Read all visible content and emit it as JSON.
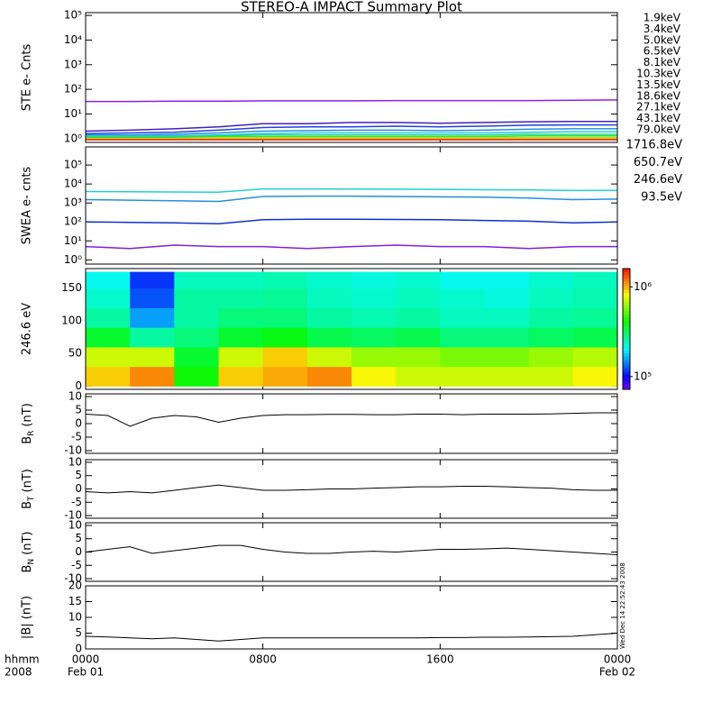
{
  "chart_data": [
    {
      "type": "line",
      "title": "STEREO-A IMPACT Summary Plot",
      "ylabel": "STE e- Cnts",
      "yscale": "log",
      "xlim": [
        0,
        24
      ],
      "xticks": [
        0,
        8,
        16,
        24
      ],
      "ylim": [
        0.7,
        130000
      ],
      "yticks": [
        {
          "value": 1,
          "label": "10⁰"
        },
        {
          "value": 10,
          "label": "10¹"
        },
        {
          "value": 100,
          "label": "10²"
        },
        {
          "value": 1000,
          "label": "10³"
        },
        {
          "value": 10000,
          "label": "10⁴"
        },
        {
          "value": 100000,
          "label": "10⁵"
        }
      ],
      "x": [
        0,
        2,
        4,
        6,
        8,
        10,
        12,
        14,
        16,
        18,
        20,
        22,
        24
      ],
      "series": [
        {
          "name": "1.9keV",
          "color": "#9020e0",
          "values": [
            32,
            32,
            33,
            33,
            34,
            34,
            34,
            35,
            35,
            35,
            35,
            36,
            37
          ]
        },
        {
          "name": "3.4keV",
          "color": "#4020c0",
          "values": [
            2,
            2.2,
            2.5,
            3,
            4,
            4,
            4.5,
            4.5,
            4.2,
            4.5,
            4.8,
            5,
            5
          ]
        },
        {
          "name": "5.0keV",
          "color": "#2040e0",
          "values": [
            1.6,
            1.7,
            1.8,
            2.2,
            2.8,
            3,
            3,
            3.2,
            3,
            3.2,
            3.5,
            3.6,
            3.6
          ]
        },
        {
          "name": "6.5keV",
          "color": "#2090e0",
          "values": [
            1.4,
            1.4,
            1.5,
            1.7,
            2,
            2.1,
            2.2,
            2.2,
            2.1,
            2.2,
            2.4,
            2.5,
            2.5
          ]
        },
        {
          "name": "8.1keV",
          "color": "#20c8e0",
          "values": [
            1.3,
            1.3,
            1.3,
            1.4,
            1.6,
            1.7,
            1.7,
            1.7,
            1.7,
            1.7,
            1.8,
            1.9,
            1.9
          ]
        },
        {
          "name": "10.3keV",
          "color": "#20d890",
          "values": [
            1.2,
            1.2,
            1.2,
            1.3,
            1.4,
            1.4,
            1.4,
            1.4,
            1.4,
            1.4,
            1.5,
            1.5,
            1.5
          ]
        },
        {
          "name": "13.5keV",
          "color": "#30e030",
          "values": [
            1.1,
            1.1,
            1.1,
            1.2,
            1.2,
            1.2,
            1.2,
            1.2,
            1.2,
            1.2,
            1.3,
            1.3,
            1.3
          ]
        },
        {
          "name": "18.6keV",
          "color": "#b0e020",
          "values": [
            1,
            1,
            1,
            1.1,
            1.1,
            1.1,
            1.1,
            1.1,
            1.1,
            1.1,
            1.1,
            1.1,
            1.1
          ]
        },
        {
          "name": "27.1keV",
          "color": "#f0e000",
          "values": [
            1,
            1,
            1,
            1,
            1,
            1,
            1,
            1,
            1,
            1,
            1,
            1,
            1
          ]
        },
        {
          "name": "43.1keV",
          "color": "#f0a000",
          "values": [
            0.95,
            0.95,
            0.95,
            0.95,
            0.95,
            0.95,
            0.95,
            0.95,
            0.95,
            0.95,
            0.95,
            0.95,
            0.95
          ]
        },
        {
          "name": "79.0keV",
          "color": "#e02020",
          "values": [
            0.9,
            0.9,
            0.9,
            0.9,
            0.9,
            0.9,
            0.9,
            0.9,
            0.9,
            0.9,
            0.9,
            0.9,
            0.9
          ]
        }
      ]
    },
    {
      "type": "line",
      "ylabel": "SWEA e- cnts",
      "yscale": "log",
      "xlim": [
        0,
        24
      ],
      "xticks": [
        0,
        8,
        16,
        24
      ],
      "ylim": [
        0.6,
        900000
      ],
      "yticks": [
        {
          "value": 1,
          "label": "10⁰"
        },
        {
          "value": 10,
          "label": "10¹"
        },
        {
          "value": 100,
          "label": "10²"
        },
        {
          "value": 1000,
          "label": "10³"
        },
        {
          "value": 10000,
          "label": "10⁴"
        },
        {
          "value": 100000,
          "label": "10⁵"
        }
      ],
      "x": [
        0,
        2,
        4,
        6,
        8,
        10,
        12,
        14,
        16,
        18,
        20,
        22,
        24
      ],
      "series": [
        {
          "name": "1716.8eV",
          "color": "#8020e0",
          "values": [
            5,
            4,
            6,
            5,
            5,
            4,
            5,
            6,
            5,
            5,
            4,
            5,
            5
          ]
        },
        {
          "name": "650.7eV",
          "color": "#1030d0",
          "values": [
            100,
            95,
            90,
            80,
            130,
            140,
            140,
            135,
            130,
            120,
            110,
            90,
            100
          ]
        },
        {
          "name": "246.6eV",
          "color": "#2090e0",
          "values": [
            1500,
            1400,
            1300,
            1200,
            2200,
            2300,
            2300,
            2200,
            2100,
            2000,
            1800,
            1500,
            1600
          ]
        },
        {
          "name": "93.5eV",
          "color": "#20d0d0",
          "values": [
            4000,
            3900,
            3800,
            3700,
            5500,
            5500,
            5400,
            5300,
            5200,
            5000,
            4800,
            4500,
            4600
          ]
        }
      ]
    },
    {
      "type": "heatmap",
      "ylabel": "246.6 eV",
      "xlim": [
        0,
        24
      ],
      "xticks": [
        0,
        8,
        16,
        24
      ],
      "ylim": [
        -5,
        180
      ],
      "yticks": [
        0,
        50,
        100,
        150
      ],
      "x_edges": [
        0,
        2,
        4,
        6,
        8,
        10,
        12,
        14,
        16,
        18,
        20,
        22,
        24
      ],
      "y_edges": [
        0,
        30,
        60,
        90,
        120,
        150,
        175
      ],
      "z": [
        [
          900000,
          1100000,
          400000,
          900000,
          1000000,
          1100000,
          800000,
          700000,
          700000,
          700000,
          700000,
          800000
        ],
        [
          700000,
          700000,
          350000,
          700000,
          900000,
          700000,
          600000,
          600000,
          550000,
          550000,
          600000,
          650000
        ],
        [
          350000,
          250000,
          280000,
          350000,
          380000,
          320000,
          300000,
          320000,
          280000,
          280000,
          300000,
          320000
        ],
        [
          250000,
          150000,
          250000,
          280000,
          280000,
          250000,
          240000,
          250000,
          230000,
          230000,
          250000,
          260000
        ],
        [
          220000,
          120000,
          250000,
          250000,
          260000,
          230000,
          220000,
          230000,
          220000,
          210000,
          230000,
          240000
        ],
        [
          200000,
          110000,
          230000,
          230000,
          240000,
          220000,
          210000,
          220000,
          200000,
          200000,
          220000,
          230000
        ]
      ],
      "colorbar": {
        "clim": [
          72000,
          1600000
        ],
        "ticks": [
          {
            "value": 100000,
            "label": "10⁵"
          },
          {
            "value": 1000000,
            "label": "10⁶"
          }
        ]
      }
    },
    {
      "type": "line",
      "ylabel_parts": [
        "B",
        "R",
        "(nT)"
      ],
      "xlim": [
        0,
        24
      ],
      "xticks": [
        0,
        8,
        16,
        24
      ],
      "ylim": [
        -11,
        11
      ],
      "yticks": [
        -10,
        -5,
        0,
        5,
        10
      ],
      "x": [
        0,
        1,
        2,
        3,
        4,
        5,
        6,
        7,
        8,
        9,
        10,
        11,
        12,
        13,
        14,
        15,
        16,
        17,
        18,
        19,
        20,
        21,
        22,
        23,
        24
      ],
      "series": [
        {
          "color": "#000000",
          "values": [
            3.5,
            3,
            -1,
            2,
            3,
            2.5,
            0.5,
            2,
            3,
            3.3,
            3.3,
            3.4,
            3.4,
            3.3,
            3.3,
            3.5,
            3.5,
            3.3,
            3.5,
            3.5,
            3.5,
            3.6,
            3.8,
            4,
            4
          ]
        }
      ]
    },
    {
      "type": "line",
      "ylabel_parts": [
        "B",
        "T",
        "(nT)"
      ],
      "xlim": [
        0,
        24
      ],
      "xticks": [
        0,
        8,
        16,
        24
      ],
      "ylim": [
        -11,
        11
      ],
      "yticks": [
        -10,
        -5,
        0,
        5,
        10
      ],
      "x": [
        0,
        1,
        2,
        3,
        4,
        5,
        6,
        7,
        8,
        9,
        10,
        11,
        12,
        13,
        14,
        15,
        16,
        17,
        18,
        19,
        20,
        21,
        22,
        23,
        24
      ],
      "series": [
        {
          "color": "#000000",
          "values": [
            -1,
            -1.5,
            -1,
            -1.5,
            -0.5,
            0.5,
            1.5,
            0.5,
            -0.5,
            -0.5,
            -0.3,
            0,
            0,
            0.3,
            0.5,
            0.8,
            0.8,
            1,
            1,
            0.8,
            0.5,
            0.3,
            -0.3,
            -0.5,
            -0.5
          ]
        }
      ]
    },
    {
      "type": "line",
      "ylabel_parts": [
        "B",
        "N",
        "(nT)"
      ],
      "xlim": [
        0,
        24
      ],
      "xticks": [
        0,
        8,
        16,
        24
      ],
      "ylim": [
        -11,
        11
      ],
      "yticks": [
        -10,
        -5,
        0,
        5,
        10
      ],
      "x": [
        0,
        1,
        2,
        3,
        4,
        5,
        6,
        7,
        8,
        9,
        10,
        11,
        12,
        13,
        14,
        15,
        16,
        17,
        18,
        19,
        20,
        21,
        22,
        23,
        24
      ],
      "series": [
        {
          "color": "#000000",
          "values": [
            0,
            1,
            2,
            -0.5,
            0.5,
            1.5,
            2.5,
            2.5,
            1,
            0,
            -0.5,
            -0.5,
            0,
            0.3,
            0,
            0.5,
            1,
            1,
            1.2,
            1.5,
            1,
            0.5,
            0,
            -0.5,
            -1
          ]
        }
      ]
    },
    {
      "type": "line",
      "ylabel": "|B| (nT)",
      "xlim": [
        0,
        24
      ],
      "ylim": [
        0,
        20
      ],
      "yticks": [
        0,
        5,
        10,
        15,
        20
      ],
      "xticks": [
        {
          "value": 0,
          "label": "0000"
        },
        {
          "value": 8,
          "label": "0800"
        },
        {
          "value": 16,
          "label": "1600"
        },
        {
          "value": 24,
          "label": "0000"
        }
      ],
      "date_labels": [
        {
          "value": 0,
          "label": "Feb 01"
        },
        {
          "value": 24,
          "label": "Feb 02"
        }
      ],
      "x_row_labels": [
        "hhmm",
        "2008"
      ],
      "timestamp": "Wed Dec 14 22:52:43 2008",
      "x": [
        0,
        1,
        2,
        3,
        4,
        5,
        6,
        7,
        8,
        9,
        10,
        11,
        12,
        13,
        14,
        15,
        16,
        17,
        18,
        19,
        20,
        21,
        22,
        23,
        24
      ],
      "series": [
        {
          "color": "#000000",
          "values": [
            4,
            3.8,
            3.5,
            3.2,
            3.5,
            3,
            2.5,
            3,
            3.5,
            3.5,
            3.5,
            3.5,
            3.5,
            3.5,
            3.5,
            3.5,
            3.6,
            3.6,
            3.7,
            3.7,
            3.8,
            3.9,
            4,
            4.5,
            5
          ]
        }
      ]
    }
  ]
}
